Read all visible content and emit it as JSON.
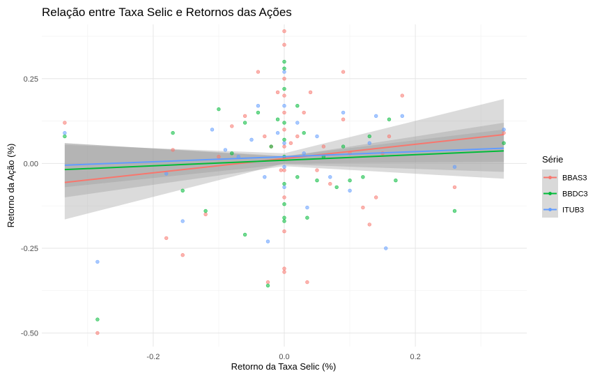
{
  "chart_data": {
    "type": "scatter",
    "title": "Relação entre Taxa Selic e Retornos das Ações",
    "xlabel": "Retorno da Taxa Selic (%)",
    "ylabel": "Retorno da Ação (%)",
    "xlim": [
      -0.37,
      0.37
    ],
    "ylim": [
      -0.54,
      0.41
    ],
    "x_ticks": [
      -0.2,
      0.0,
      0.2
    ],
    "x_tick_labels": [
      "-0.2",
      "0.0",
      "0.2"
    ],
    "y_ticks": [
      -0.5,
      -0.25,
      0.0,
      0.25
    ],
    "y_tick_labels": [
      "-0.50",
      "-0.25",
      "0.00",
      "0.25"
    ],
    "grid": true,
    "legend": {
      "title": "Série",
      "position": "right"
    },
    "series": [
      {
        "name": "BBAS3",
        "color": "#F8766D",
        "points": [
          [
            -0.335,
            0.12
          ],
          [
            -0.285,
            -0.5
          ],
          [
            -0.18,
            -0.22
          ],
          [
            -0.17,
            0.04
          ],
          [
            -0.155,
            -0.27
          ],
          [
            -0.12,
            -0.15
          ],
          [
            -0.1,
            0.02
          ],
          [
            -0.08,
            0.11
          ],
          [
            -0.06,
            0.14
          ],
          [
            -0.04,
            0.27
          ],
          [
            -0.03,
            0.08
          ],
          [
            -0.025,
            -0.35
          ],
          [
            -0.02,
            0.05
          ],
          [
            -0.01,
            0.21
          ],
          [
            -0.005,
            -0.02
          ],
          [
            0.0,
            0.39
          ],
          [
            0.0,
            0.35
          ],
          [
            0.0,
            0.25
          ],
          [
            0.0,
            0.2
          ],
          [
            0.0,
            0.15
          ],
          [
            0.0,
            0.1
          ],
          [
            0.0,
            0.05
          ],
          [
            0.0,
            -0.02
          ],
          [
            0.0,
            -0.1
          ],
          [
            0.0,
            -0.2
          ],
          [
            0.0,
            -0.31
          ],
          [
            0.0,
            -0.32
          ],
          [
            0.01,
            0.06
          ],
          [
            0.02,
            0.08
          ],
          [
            0.03,
            0.15
          ],
          [
            0.035,
            -0.35
          ],
          [
            0.04,
            0.21
          ],
          [
            0.05,
            -0.02
          ],
          [
            0.06,
            0.05
          ],
          [
            0.07,
            -0.06
          ],
          [
            0.09,
            0.27
          ],
          [
            0.09,
            0.13
          ],
          [
            0.1,
            0.03
          ],
          [
            0.12,
            -0.13
          ],
          [
            0.13,
            -0.18
          ],
          [
            0.14,
            -0.1
          ],
          [
            0.15,
            0.03
          ],
          [
            0.16,
            0.08
          ],
          [
            0.18,
            0.2
          ],
          [
            0.26,
            -0.07
          ],
          [
            0.335,
            0.09
          ]
        ]
      },
      {
        "name": "BBDC3",
        "color": "#00BA38",
        "points": [
          [
            -0.335,
            0.08
          ],
          [
            -0.285,
            -0.46
          ],
          [
            -0.17,
            0.09
          ],
          [
            -0.155,
            -0.08
          ],
          [
            -0.12,
            -0.14
          ],
          [
            -0.1,
            0.16
          ],
          [
            -0.08,
            0.03
          ],
          [
            -0.06,
            0.12
          ],
          [
            -0.06,
            -0.21
          ],
          [
            -0.04,
            0.15
          ],
          [
            -0.02,
            0.05
          ],
          [
            -0.025,
            -0.36
          ],
          [
            -0.01,
            0.13
          ],
          [
            0.0,
            0.3
          ],
          [
            0.0,
            0.28
          ],
          [
            0.0,
            0.22
          ],
          [
            0.0,
            0.12
          ],
          [
            0.0,
            0.07
          ],
          [
            0.0,
            0.02
          ],
          [
            0.0,
            -0.06
          ],
          [
            0.0,
            -0.12
          ],
          [
            0.0,
            -0.16
          ],
          [
            0.0,
            -0.17
          ],
          [
            0.02,
            0.17
          ],
          [
            0.02,
            -0.04
          ],
          [
            0.03,
            0.09
          ],
          [
            0.035,
            -0.16
          ],
          [
            0.05,
            -0.05
          ],
          [
            0.06,
            0.02
          ],
          [
            0.08,
            -0.07
          ],
          [
            0.09,
            0.05
          ],
          [
            0.1,
            -0.05
          ],
          [
            0.12,
            -0.04
          ],
          [
            0.13,
            0.08
          ],
          [
            0.16,
            0.13
          ],
          [
            0.17,
            -0.05
          ],
          [
            0.26,
            -0.14
          ],
          [
            0.335,
            0.06
          ]
        ]
      },
      {
        "name": "ITUB3",
        "color": "#619CFF",
        "points": [
          [
            -0.335,
            0.09
          ],
          [
            -0.285,
            -0.29
          ],
          [
            -0.18,
            -0.03
          ],
          [
            -0.155,
            -0.17
          ],
          [
            -0.11,
            0.1
          ],
          [
            -0.09,
            0.04
          ],
          [
            -0.07,
            0.02
          ],
          [
            -0.05,
            0.07
          ],
          [
            -0.04,
            0.17
          ],
          [
            -0.03,
            -0.04
          ],
          [
            -0.025,
            -0.23
          ],
          [
            -0.01,
            0.09
          ],
          [
            0.0,
            0.27
          ],
          [
            0.0,
            0.17
          ],
          [
            0.0,
            0.06
          ],
          [
            0.0,
            -0.01
          ],
          [
            0.0,
            -0.07
          ],
          [
            0.02,
            0.12
          ],
          [
            0.03,
            0.03
          ],
          [
            0.035,
            -0.13
          ],
          [
            0.05,
            0.08
          ],
          [
            0.07,
            -0.04
          ],
          [
            0.09,
            0.15
          ],
          [
            0.1,
            -0.08
          ],
          [
            0.13,
            0.06
          ],
          [
            0.14,
            0.14
          ],
          [
            0.155,
            -0.25
          ],
          [
            0.18,
            0.14
          ],
          [
            0.26,
            -0.01
          ],
          [
            0.335,
            0.1
          ]
        ]
      }
    ],
    "trend_lines": [
      {
        "name": "BBAS3",
        "color": "#F8766D",
        "x": [
          -0.335,
          0.335
        ],
        "y": [
          -0.056,
          0.085
        ],
        "ci_lower": [
          -0.165,
          0.005
        ],
        "ci_upper": [
          0.055,
          0.19
        ],
        "ci_center_lower": 0.0,
        "ci_center_upper": 0.03
      },
      {
        "name": "BBDC3",
        "color": "#00BA38",
        "x": [
          -0.335,
          0.335
        ],
        "y": [
          -0.018,
          0.037
        ],
        "ci_lower": [
          -0.1,
          -0.045
        ],
        "ci_upper": [
          0.06,
          0.12
        ],
        "ci_center_lower": -0.008,
        "ci_center_upper": 0.02
      },
      {
        "name": "ITUB3",
        "color": "#619CFF",
        "x": [
          -0.335,
          0.335
        ],
        "y": [
          -0.005,
          0.045
        ],
        "ci_lower": [
          -0.07,
          -0.025
        ],
        "ci_upper": [
          0.06,
          0.1
        ],
        "ci_center_lower": -0.003,
        "ci_center_upper": 0.022
      }
    ]
  }
}
